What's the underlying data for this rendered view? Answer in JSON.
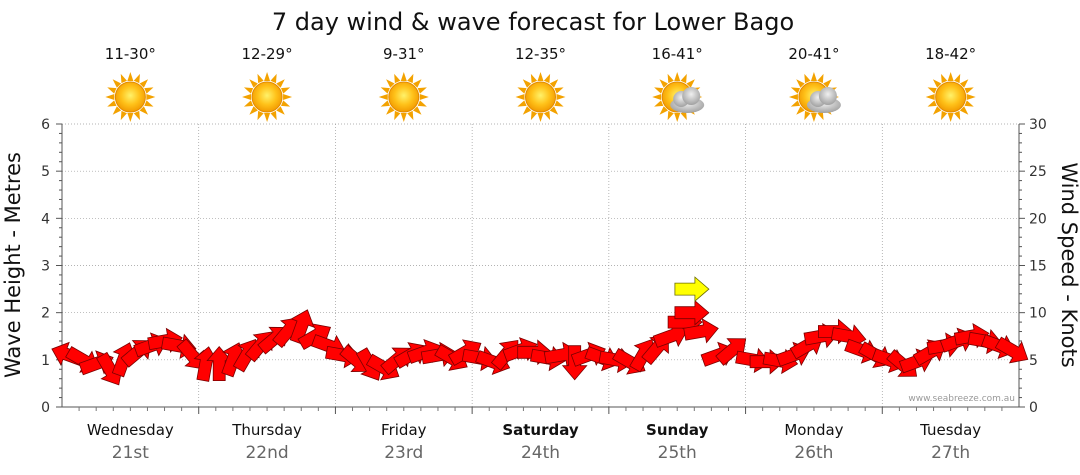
{
  "chart_data": {
    "type": "line",
    "title": "7 day wind & wave forecast for Lower Bago",
    "ylabel_left": "Wave Height - Metres",
    "ylabel_right": "Wind Speed - Knots",
    "ylim_left": [
      0,
      6
    ],
    "ylim_right": [
      0,
      30
    ],
    "yticks_left": [
      "0",
      "1",
      "2",
      "3",
      "4",
      "5",
      "6"
    ],
    "yticks_right": [
      "0",
      "5",
      "10",
      "15",
      "20",
      "25",
      "30"
    ],
    "grid": true,
    "watermark": "www.seabreeze.com.au",
    "days": [
      {
        "name": "Wednesday",
        "date": "21st",
        "temp": "11-30°",
        "icon": "sun-icon",
        "bold": false
      },
      {
        "name": "Thursday",
        "date": "22nd",
        "temp": "12-29°",
        "icon": "sun-icon",
        "bold": false
      },
      {
        "name": "Friday",
        "date": "23rd",
        "temp": "9-31°",
        "icon": "sun-icon",
        "bold": false
      },
      {
        "name": "Saturday",
        "date": "24th",
        "temp": "12-35°",
        "icon": "sun-icon",
        "bold": true
      },
      {
        "name": "Sunday",
        "date": "25th",
        "temp": "16-41°",
        "icon": "sun-cloud-icon",
        "bold": true
      },
      {
        "name": "Monday",
        "date": "26th",
        "temp": "20-41°",
        "icon": "sun-cloud-icon",
        "bold": false
      },
      {
        "name": "Tuesday",
        "date": "27th",
        "temp": "18-42°",
        "icon": "sun-icon",
        "bold": false
      }
    ],
    "series": [
      {
        "name": "Wind Speed (knots)",
        "color": "#ff0000",
        "points": [
          {
            "x": 0.0,
            "y": 5.5,
            "dir": -160
          },
          {
            "x": 0.1,
            "y": 5.0,
            "dir": 30
          },
          {
            "x": 0.2,
            "y": 4.6,
            "dir": -20
          },
          {
            "x": 0.3,
            "y": 4.0,
            "dir": 60
          },
          {
            "x": 0.4,
            "y": 5.0,
            "dir": -70
          },
          {
            "x": 0.5,
            "y": 5.8,
            "dir": -40
          },
          {
            "x": 0.6,
            "y": 6.5,
            "dir": -20
          },
          {
            "x": 0.7,
            "y": 7.0,
            "dir": -10
          },
          {
            "x": 0.8,
            "y": 6.5,
            "dir": 10
          },
          {
            "x": 0.9,
            "y": 5.5,
            "dir": 50
          },
          {
            "x": 1.0,
            "y": 4.5,
            "dir": -80
          },
          {
            "x": 1.1,
            "y": 4.5,
            "dir": -90
          },
          {
            "x": 1.2,
            "y": 5.0,
            "dir": -70
          },
          {
            "x": 1.3,
            "y": 5.5,
            "dir": -60
          },
          {
            "x": 1.4,
            "y": 6.5,
            "dir": -50
          },
          {
            "x": 1.5,
            "y": 7.2,
            "dir": -40
          },
          {
            "x": 1.6,
            "y": 8.0,
            "dir": -50
          },
          {
            "x": 1.7,
            "y": 8.5,
            "dir": -70
          },
          {
            "x": 1.8,
            "y": 7.5,
            "dir": -30
          },
          {
            "x": 1.9,
            "y": 6.5,
            "dir": 20
          },
          {
            "x": 2.0,
            "y": 5.5,
            "dir": 10
          },
          {
            "x": 2.1,
            "y": 5.0,
            "dir": 40
          },
          {
            "x": 2.2,
            "y": 4.5,
            "dir": 60
          },
          {
            "x": 2.3,
            "y": 4.2,
            "dir": 30
          },
          {
            "x": 2.4,
            "y": 5.0,
            "dir": -40
          },
          {
            "x": 2.5,
            "y": 5.5,
            "dir": -30
          },
          {
            "x": 2.6,
            "y": 5.8,
            "dir": -20
          },
          {
            "x": 2.7,
            "y": 5.5,
            "dir": -10
          },
          {
            "x": 2.8,
            "y": 5.2,
            "dir": 30
          },
          {
            "x": 2.9,
            "y": 5.8,
            "dir": -30
          },
          {
            "x": 3.0,
            "y": 5.2,
            "dir": 10
          },
          {
            "x": 3.1,
            "y": 4.8,
            "dir": 20
          },
          {
            "x": 3.2,
            "y": 5.6,
            "dir": -50
          },
          {
            "x": 3.3,
            "y": 6.0,
            "dir": -20
          },
          {
            "x": 3.4,
            "y": 5.8,
            "dir": 0
          },
          {
            "x": 3.5,
            "y": 5.2,
            "dir": 10
          },
          {
            "x": 3.6,
            "y": 5.5,
            "dir": -10
          },
          {
            "x": 3.7,
            "y": 4.8,
            "dir": 90
          },
          {
            "x": 3.8,
            "y": 5.5,
            "dir": -20
          },
          {
            "x": 3.9,
            "y": 5.2,
            "dir": 20
          },
          {
            "x": 4.0,
            "y": 5.0,
            "dir": 10
          },
          {
            "x": 4.1,
            "y": 4.8,
            "dir": 30
          },
          {
            "x": 4.2,
            "y": 5.5,
            "dir": -60
          },
          {
            "x": 4.3,
            "y": 6.2,
            "dir": -50
          },
          {
            "x": 4.4,
            "y": 7.5,
            "dir": -20
          },
          {
            "x": 4.5,
            "y": 9.0,
            "dir": 0
          },
          {
            "x": 4.55,
            "y": 10.0,
            "dir": 0
          },
          {
            "x": 4.62,
            "y": 8.0,
            "dir": -10
          },
          {
            "x": 4.75,
            "y": 5.5,
            "dir": -20
          },
          {
            "x": 4.85,
            "y": 6.0,
            "dir": -40
          },
          {
            "x": 5.0,
            "y": 5.0,
            "dir": 10
          },
          {
            "x": 5.1,
            "y": 4.8,
            "dir": 0
          },
          {
            "x": 5.2,
            "y": 4.9,
            "dir": 10
          },
          {
            "x": 5.3,
            "y": 5.5,
            "dir": -20
          },
          {
            "x": 5.4,
            "y": 6.5,
            "dir": -30
          },
          {
            "x": 5.5,
            "y": 7.5,
            "dir": -10
          },
          {
            "x": 5.6,
            "y": 8.0,
            "dir": 0
          },
          {
            "x": 5.7,
            "y": 7.5,
            "dir": 10
          },
          {
            "x": 5.8,
            "y": 6.0,
            "dir": 20
          },
          {
            "x": 5.9,
            "y": 5.5,
            "dir": 30
          },
          {
            "x": 6.0,
            "y": 5.0,
            "dir": 20
          },
          {
            "x": 6.1,
            "y": 4.5,
            "dir": 40
          },
          {
            "x": 6.2,
            "y": 4.8,
            "dir": -20
          },
          {
            "x": 6.3,
            "y": 5.8,
            "dir": -30
          },
          {
            "x": 6.4,
            "y": 6.5,
            "dir": -10
          },
          {
            "x": 6.5,
            "y": 7.0,
            "dir": -20
          },
          {
            "x": 6.6,
            "y": 7.5,
            "dir": -10
          },
          {
            "x": 6.7,
            "y": 7.0,
            "dir": 10
          },
          {
            "x": 6.8,
            "y": 6.5,
            "dir": 20
          },
          {
            "x": 6.9,
            "y": 6.0,
            "dir": 30
          }
        ]
      },
      {
        "name": "Wind Gust (knots)",
        "color": "#ffff00",
        "points": [
          {
            "x": 4.55,
            "y": 12.5,
            "dir": 0
          }
        ]
      }
    ]
  }
}
